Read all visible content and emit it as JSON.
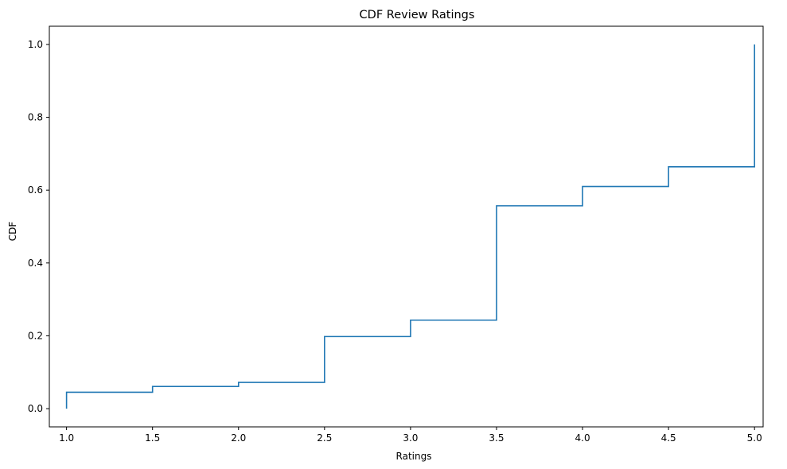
{
  "chart_data": {
    "type": "line",
    "drawstyle": "steps-post",
    "title": "CDF Review Ratings",
    "xlabel": "Ratings",
    "ylabel": "CDF",
    "xlim": [
      0.9,
      5.05
    ],
    "ylim": [
      -0.05,
      1.05
    ],
    "xticks": [
      1.0,
      1.5,
      2.0,
      2.5,
      3.0,
      3.5,
      4.0,
      4.5,
      5.0
    ],
    "xtick_labels": [
      "1.0",
      "1.5",
      "2.0",
      "2.5",
      "3.0",
      "3.5",
      "4.0",
      "4.5",
      "5.0"
    ],
    "yticks": [
      0.0,
      0.2,
      0.4,
      0.6,
      0.8,
      1.0
    ],
    "ytick_labels": [
      "0.0",
      "0.2",
      "0.4",
      "0.6",
      "0.8",
      "1.0"
    ],
    "grid": false,
    "color": "#1f77b4",
    "series": [
      {
        "x": [
          1.0,
          1.0,
          1.5,
          2.0,
          2.5,
          3.0,
          3.5,
          4.0,
          4.5,
          5.0
        ],
        "y": [
          0.0,
          0.045,
          0.061,
          0.072,
          0.198,
          0.243,
          0.557,
          0.61,
          0.664,
          1.0
        ]
      }
    ]
  }
}
